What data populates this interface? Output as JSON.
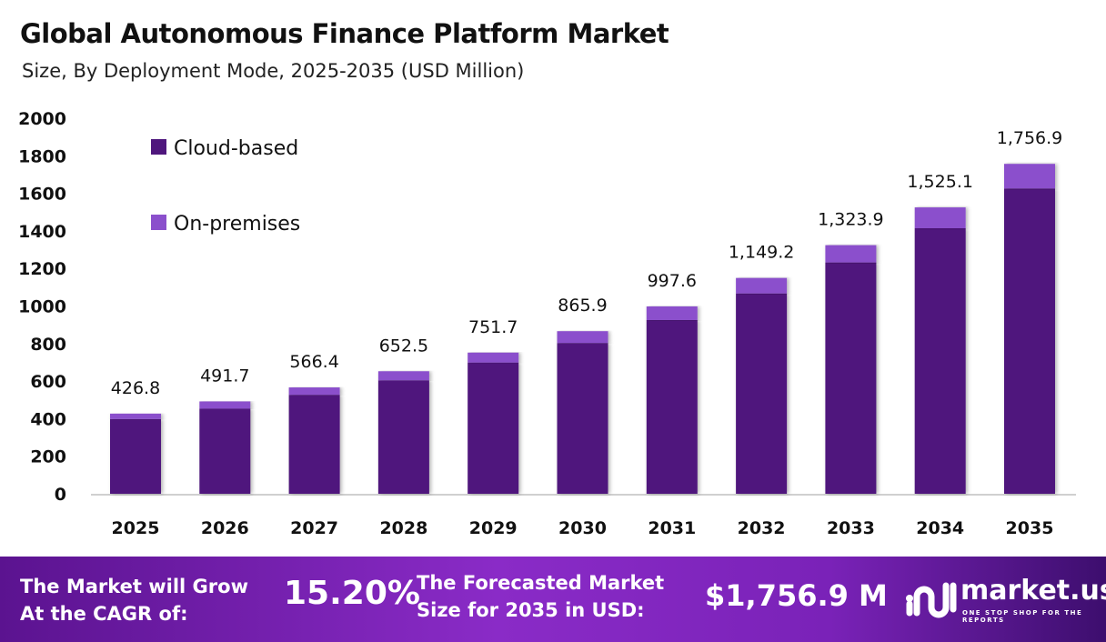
{
  "title": "Global Autonomous Finance Platform Market",
  "subtitle": "Size, By Deployment Mode, 2025-2035 (USD Million)",
  "chart_data": {
    "type": "bar",
    "stacked": true,
    "categories": [
      "2025",
      "2026",
      "2027",
      "2028",
      "2029",
      "2030",
      "2031",
      "2032",
      "2033",
      "2034",
      "2035"
    ],
    "series": [
      {
        "name": "Cloud-based",
        "color": "#4f177d",
        "values": [
          398,
          453,
          527,
          604,
          699,
          803,
          925,
          1067,
          1232,
          1414,
          1626
        ]
      },
      {
        "name": "On-premises",
        "color": "#8b50cc",
        "values": [
          28.8,
          38.7,
          39.4,
          48.5,
          52.7,
          62.9,
          72.6,
          82.2,
          91.9,
          111.1,
          130.9
        ]
      }
    ],
    "totals": [
      "426.8",
      "491.7",
      "566.4",
      "652.5",
      "751.7",
      "865.9",
      "997.6",
      "1,149.2",
      "1,323.9",
      "1,525.1",
      "1,756.9"
    ],
    "ylim": [
      0,
      2000
    ],
    "yticks": [
      "0",
      "200",
      "400",
      "600",
      "800",
      "1000",
      "1200",
      "1400",
      "1600",
      "1800",
      "2000"
    ],
    "grid": false,
    "legend_position": "top-left"
  },
  "footer": {
    "cagr_label": [
      "The Market will Grow",
      "At the CAGR of:"
    ],
    "cagr_value": "15.20%",
    "forecast_label": [
      "The Forecasted Market",
      "Size for 2035 in USD:"
    ],
    "forecast_value": "$1,756.9 M",
    "logo_text": "market.us",
    "logo_tagline": "ONE STOP SHOP FOR THE REPORTS"
  }
}
